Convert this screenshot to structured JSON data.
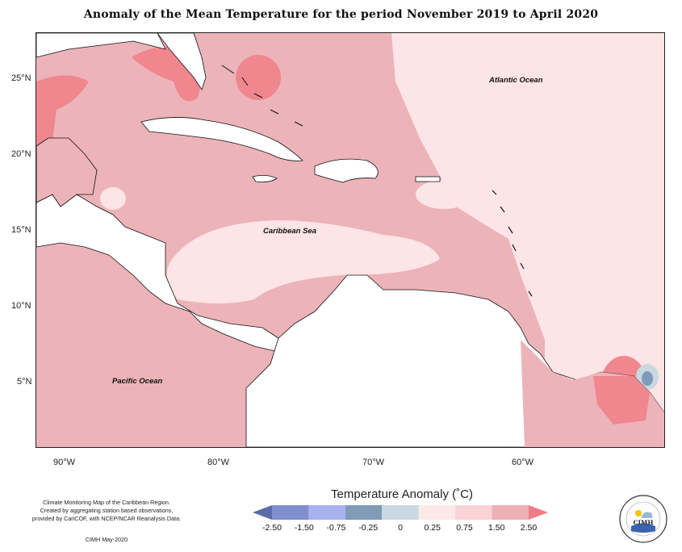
{
  "title": "Anomaly of the Mean Temperature for the period November 2019 to April 2020",
  "map": {
    "latitude_labels": [
      "25°N",
      "20°N",
      "15°N",
      "10°N",
      "5°N"
    ],
    "longitude_labels": [
      "90°W",
      "80°W",
      "70°W",
      "60°W"
    ],
    "region_labels": {
      "atlantic": "Atlantic Ocean",
      "caribbean": "Caribbean Sea",
      "pacific": "Pacific Ocean"
    }
  },
  "credits": {
    "line1": "Climate Monitoring Map of the Caribbean Region.",
    "line2": "Created by aggregating station based observations,",
    "line3": "provided by CariCOF, with NCEP/NCAR Reanalysis Data.",
    "date": "CIMH May-2020"
  },
  "legend": {
    "title": "Temperature Anomaly (˚C)",
    "ticks": [
      "-2.50",
      "-1.50",
      "-0.75",
      "-0.25",
      "0",
      "0.25",
      "0.75",
      "1.50",
      "2.50"
    ],
    "colors": [
      "#5b6aa8",
      "#7f8fcf",
      "#a7b2ee",
      "#7f9bb8",
      "#c9d8e2",
      "#fde9ea",
      "#fbd3d7",
      "#edb0b5",
      "#f07c85"
    ]
  },
  "logo": {
    "text": "CIMH",
    "ring_text": "Caribbean Institute for Meteorology and Hydrology"
  },
  "colors": {
    "anomaly_0_25": "#fde4e6",
    "anomaly_0_75": "#ecb4b8",
    "anomaly_1_50": "#f0868e",
    "anomaly_neg": "#7f9bb8"
  }
}
